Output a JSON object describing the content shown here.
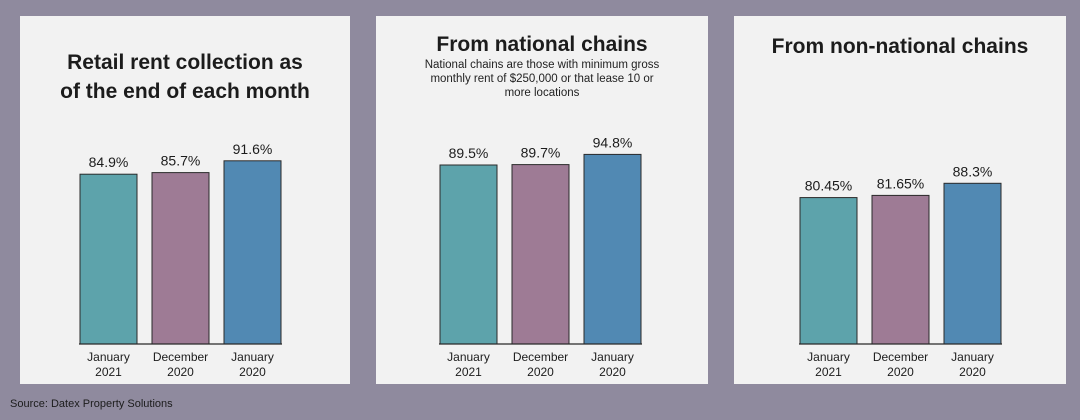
{
  "colors": {
    "background": "#8f8a9e",
    "panel": "#f2f2f2",
    "january_2021": "#5da3ab",
    "december_2020": "#9e7b95",
    "january_2020": "#5189b3"
  },
  "source": "Source: Datex Property Solutions",
  "chart_data": [
    {
      "type": "bar",
      "title": "Retail rent collection as of the end of each month",
      "subtitle": "",
      "categories": [
        [
          "January",
          "2021"
        ],
        [
          "December",
          "2020"
        ],
        [
          "January",
          "2020"
        ]
      ],
      "values": [
        84.9,
        85.7,
        91.6
      ],
      "labels": [
        "84.9%",
        "85.7%",
        "91.6%"
      ],
      "ylim": [
        0,
        100
      ],
      "grid": false,
      "legend": "none"
    },
    {
      "type": "bar",
      "title": "From national chains",
      "subtitle": "National chains are those with minimum gross monthly rent of $250,000 or that lease 10 or more locations",
      "categories": [
        [
          "January",
          "2021"
        ],
        [
          "December",
          "2020"
        ],
        [
          "January",
          "2020"
        ]
      ],
      "values": [
        89.5,
        89.7,
        94.8
      ],
      "labels": [
        "89.5%",
        "89.7%",
        "94.8%"
      ],
      "ylim": [
        0,
        100
      ],
      "grid": false,
      "legend": "none"
    },
    {
      "type": "bar",
      "title": "From non-national chains",
      "subtitle": "",
      "categories": [
        [
          "January",
          "2021"
        ],
        [
          "December",
          "2020"
        ],
        [
          "January",
          "2020"
        ]
      ],
      "values": [
        80.45,
        81.65,
        88.3
      ],
      "labels": [
        "80.45%",
        "81.65%",
        "88.3%"
      ],
      "ylim": [
        0,
        100
      ],
      "grid": false,
      "legend": "none"
    }
  ]
}
